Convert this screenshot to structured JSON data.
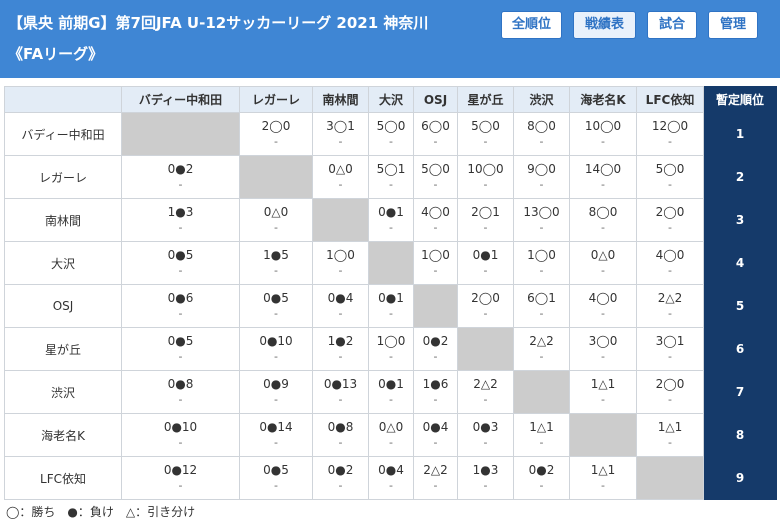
{
  "header": {
    "title_line1": "【県央 前期G】第7回JFA U-12サッカーリーグ 2021 神奈川",
    "title_line2": "《FAリーグ》",
    "buttons": [
      "全順位",
      "戦績表",
      "試合",
      "管理"
    ],
    "active_button": "戦績表"
  },
  "table": {
    "columns": [
      "",
      "バディー中和田",
      "レガーレ",
      "南林間",
      "大沢",
      "OSJ",
      "星が丘",
      "渋沢",
      "海老名K",
      "LFC依知",
      "暫定順位"
    ],
    "rows": [
      {
        "team": "バディー中和田",
        "cells": [
          null,
          [
            "2◯0",
            "-"
          ],
          [
            "3◯1",
            "-"
          ],
          [
            "5◯0",
            "-"
          ],
          [
            "6◯0",
            "-"
          ],
          [
            "5◯0",
            "-"
          ],
          [
            "8◯0",
            "-"
          ],
          [
            "10◯0",
            "-"
          ],
          [
            "12◯0",
            "-"
          ]
        ],
        "rank": "1"
      },
      {
        "team": "レガーレ",
        "cells": [
          [
            "0●2",
            "-"
          ],
          null,
          [
            "0△0",
            "-"
          ],
          [
            "5◯1",
            "-"
          ],
          [
            "5◯0",
            "-"
          ],
          [
            "10◯0",
            "-"
          ],
          [
            "9◯0",
            "-"
          ],
          [
            "14◯0",
            "-"
          ],
          [
            "5◯0",
            "-"
          ]
        ],
        "rank": "2"
      },
      {
        "team": "南林間",
        "cells": [
          [
            "1●3",
            "-"
          ],
          [
            "0△0",
            "-"
          ],
          null,
          [
            "0●1",
            "-"
          ],
          [
            "4◯0",
            "-"
          ],
          [
            "2◯1",
            "-"
          ],
          [
            "13◯0",
            "-"
          ],
          [
            "8◯0",
            "-"
          ],
          [
            "2◯0",
            "-"
          ]
        ],
        "rank": "3"
      },
      {
        "team": "大沢",
        "cells": [
          [
            "0●5",
            "-"
          ],
          [
            "1●5",
            "-"
          ],
          [
            "1◯0",
            "-"
          ],
          null,
          [
            "1◯0",
            "-"
          ],
          [
            "0●1",
            "-"
          ],
          [
            "1◯0",
            "-"
          ],
          [
            "0△0",
            "-"
          ],
          [
            "4◯0",
            "-"
          ]
        ],
        "rank": "4"
      },
      {
        "team": "OSJ",
        "cells": [
          [
            "0●6",
            "-"
          ],
          [
            "0●5",
            "-"
          ],
          [
            "0●4",
            "-"
          ],
          [
            "0●1",
            "-"
          ],
          null,
          [
            "2◯0",
            "-"
          ],
          [
            "6◯1",
            "-"
          ],
          [
            "4◯0",
            "-"
          ],
          [
            "2△2",
            "-"
          ]
        ],
        "rank": "5"
      },
      {
        "team": "星が丘",
        "cells": [
          [
            "0●5",
            "-"
          ],
          [
            "0●10",
            "-"
          ],
          [
            "1●2",
            "-"
          ],
          [
            "1◯0",
            "-"
          ],
          [
            "0●2",
            "-"
          ],
          null,
          [
            "2△2",
            "-"
          ],
          [
            "3◯0",
            "-"
          ],
          [
            "3◯1",
            "-"
          ]
        ],
        "rank": "6"
      },
      {
        "team": "渋沢",
        "cells": [
          [
            "0●8",
            "-"
          ],
          [
            "0●9",
            "-"
          ],
          [
            "0●13",
            "-"
          ],
          [
            "0●1",
            "-"
          ],
          [
            "1●6",
            "-"
          ],
          [
            "2△2",
            "-"
          ],
          null,
          [
            "1△1",
            "-"
          ],
          [
            "2◯0",
            "-"
          ]
        ],
        "rank": "7"
      },
      {
        "team": "海老名K",
        "cells": [
          [
            "0●10",
            "-"
          ],
          [
            "0●14",
            "-"
          ],
          [
            "0●8",
            "-"
          ],
          [
            "0△0",
            "-"
          ],
          [
            "0●4",
            "-"
          ],
          [
            "0●3",
            "-"
          ],
          [
            "1△1",
            "-"
          ],
          null,
          [
            "1△1",
            "-"
          ]
        ],
        "rank": "8"
      },
      {
        "team": "LFC依知",
        "cells": [
          [
            "0●12",
            "-"
          ],
          [
            "0●5",
            "-"
          ],
          [
            "0●2",
            "-"
          ],
          [
            "0●4",
            "-"
          ],
          [
            "2△2",
            "-"
          ],
          [
            "1●3",
            "-"
          ],
          [
            "0●2",
            "-"
          ],
          [
            "1△1",
            "-"
          ],
          null
        ],
        "rank": "9"
      }
    ]
  },
  "legend": "◯：勝ち　●：負け　△：引き分け",
  "colors": {
    "header_bg": "#3f86d4",
    "column_header_bg": "#e3ecf6",
    "rank_bg": "#153a6a",
    "self_cell_bg": "#cccccc"
  }
}
